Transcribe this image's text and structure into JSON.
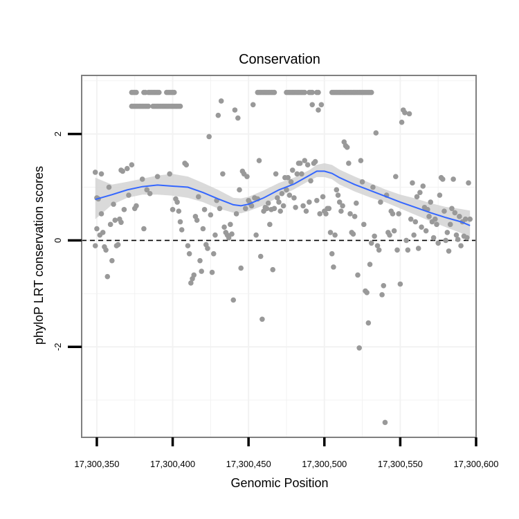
{
  "chart_data": {
    "type": "scatter",
    "title": "Conservation",
    "xlabel": "Genomic Position",
    "ylabel": "phyloP LRT conservation scores",
    "xlim": [
      17300340,
      17300600
    ],
    "ylim": [
      -3.7,
      3.1
    ],
    "x_ticks": [
      17300350,
      17300400,
      17300450,
      17300500,
      17300550,
      17300600
    ],
    "x_tick_labels": [
      "17,300,350",
      "17,300,400",
      "17,300,450",
      "17,300,500",
      "17,300,550",
      "17,300,600"
    ],
    "y_ticks": [
      -2,
      0,
      2
    ],
    "y_tick_labels": [
      "-2",
      "0",
      "2"
    ],
    "reference_line": {
      "y": 0,
      "style": "dashed"
    },
    "colors": {
      "points": "#999999",
      "smooth": "#3366ff",
      "band": "#d3d3d3",
      "frame": "#7f7f7f",
      "grid": "#f2f2f2"
    },
    "points": [
      [
        17300349,
        1.28
      ],
      [
        17300349,
        -0.1
      ],
      [
        17300350,
        0.8
      ],
      [
        17300350,
        0.22
      ],
      [
        17300351,
        0.78
      ],
      [
        17300352,
        0.1
      ],
      [
        17300353,
        1.25
      ],
      [
        17300353,
        0.5
      ],
      [
        17300354,
        0.15
      ],
      [
        17300355,
        -0.12
      ],
      [
        17300356,
        -0.18
      ],
      [
        17300357,
        -0.68
      ],
      [
        17300358,
        1.0
      ],
      [
        17300359,
        0.3
      ],
      [
        17300360,
        -0.38
      ],
      [
        17300361,
        0.68
      ],
      [
        17300362,
        0.38
      ],
      [
        17300363,
        -0.1
      ],
      [
        17300364,
        -0.08
      ],
      [
        17300365,
        0.4
      ],
      [
        17300366,
        1.32
      ],
      [
        17300366,
        0.34
      ],
      [
        17300367,
        1.3
      ],
      [
        17300368,
        0.58
      ],
      [
        17300370,
        1.35
      ],
      [
        17300371,
        0.85
      ],
      [
        17300373,
        1.42
      ],
      [
        17300375,
        0.6
      ],
      [
        17300376,
        0.65
      ],
      [
        17300380,
        1.15
      ],
      [
        17300381,
        0.22
      ],
      [
        17300383,
        0.95
      ],
      [
        17300385,
        0.88
      ],
      [
        17300390,
        1.2
      ],
      [
        17300398,
        1.25
      ],
      [
        17300400,
        0.58
      ],
      [
        17300402,
        0.78
      ],
      [
        17300403,
        0.72
      ],
      [
        17300404,
        0.55
      ],
      [
        17300405,
        0.35
      ],
      [
        17300406,
        0.2
      ],
      [
        17300408,
        1.45
      ],
      [
        17300409,
        1.42
      ],
      [
        17300410,
        -0.1
      ],
      [
        17300411,
        -0.25
      ],
      [
        17300412,
        -0.8
      ],
      [
        17300413,
        -0.72
      ],
      [
        17300414,
        -0.65
      ],
      [
        17300415,
        0.45
      ],
      [
        17300416,
        0.38
      ],
      [
        17300417,
        0.82
      ],
      [
        17300418,
        -0.38
      ],
      [
        17300419,
        -0.58
      ],
      [
        17300420,
        0.22
      ],
      [
        17300421,
        0.58
      ],
      [
        17300422,
        -0.08
      ],
      [
        17300423,
        -0.15
      ],
      [
        17300424,
        1.95
      ],
      [
        17300425,
        0.48
      ],
      [
        17300426,
        -0.6
      ],
      [
        17300427,
        -0.25
      ],
      [
        17300428,
        0.1
      ],
      [
        17300429,
        0.75
      ],
      [
        17300430,
        2.35
      ],
      [
        17300431,
        0.6
      ],
      [
        17300432,
        2.62
      ],
      [
        17300433,
        1.25
      ],
      [
        17300434,
        0.25
      ],
      [
        17300435,
        0.15
      ],
      [
        17300436,
        0.1
      ],
      [
        17300437,
        0.05
      ],
      [
        17300438,
        0.3
      ],
      [
        17300439,
        0.12
      ],
      [
        17300440,
        -1.12
      ],
      [
        17300441,
        2.45
      ],
      [
        17300442,
        0.5
      ],
      [
        17300443,
        2.3
      ],
      [
        17300444,
        0.95
      ],
      [
        17300445,
        -0.52
      ],
      [
        17300446,
        1.3
      ],
      [
        17300447,
        1.25
      ],
      [
        17300448,
        0.6
      ],
      [
        17300449,
        1.2
      ],
      [
        17300450,
        0.75
      ],
      [
        17300451,
        0.7
      ],
      [
        17300452,
        0.65
      ],
      [
        17300453,
        2.55
      ],
      [
        17300454,
        0.8
      ],
      [
        17300455,
        0.1
      ],
      [
        17300456,
        0.78
      ],
      [
        17300457,
        1.5
      ],
      [
        17300458,
        -0.3
      ],
      [
        17300459,
        -1.48
      ],
      [
        17300460,
        0.55
      ],
      [
        17300461,
        0.62
      ],
      [
        17300462,
        0.6
      ],
      [
        17300463,
        0.7
      ],
      [
        17300464,
        0.3
      ],
      [
        17300465,
        0.58
      ],
      [
        17300466,
        -0.55
      ],
      [
        17300467,
        0.6
      ],
      [
        17300468,
        1.25
      ],
      [
        17300469,
        0.8
      ],
      [
        17300470,
        0.72
      ],
      [
        17300471,
        0.55
      ],
      [
        17300472,
        0.88
      ],
      [
        17300473,
        0.65
      ],
      [
        17300474,
        1.18
      ],
      [
        17300475,
        0.95
      ],
      [
        17300476,
        1.18
      ],
      [
        17300477,
        0.85
      ],
      [
        17300478,
        1.1
      ],
      [
        17300479,
        1.32
      ],
      [
        17300480,
        0.8
      ],
      [
        17300481,
        0.62
      ],
      [
        17300482,
        1.25
      ],
      [
        17300483,
        1.45
      ],
      [
        17300484,
        1.45
      ],
      [
        17300485,
        1.25
      ],
      [
        17300486,
        0.65
      ],
      [
        17300487,
        1.5
      ],
      [
        17300488,
        0.55
      ],
      [
        17300489,
        1.42
      ],
      [
        17300490,
        0.72
      ],
      [
        17300491,
        1.12
      ],
      [
        17300492,
        2.55
      ],
      [
        17300493,
        1.45
      ],
      [
        17300494,
        1.48
      ],
      [
        17300495,
        0.75
      ],
      [
        17300496,
        2.45
      ],
      [
        17300497,
        0.5
      ],
      [
        17300498,
        2.55
      ],
      [
        17300499,
        0.82
      ],
      [
        17300500,
        0.55
      ],
      [
        17300501,
        0.5
      ],
      [
        17300502,
        0.6
      ],
      [
        17300503,
        0.6
      ],
      [
        17300504,
        0.15
      ],
      [
        17300505,
        -0.25
      ],
      [
        17300506,
        -0.5
      ],
      [
        17300507,
        0.1
      ],
      [
        17300508,
        0.95
      ],
      [
        17300509,
        0.85
      ],
      [
        17300510,
        0.72
      ],
      [
        17300511,
        0.55
      ],
      [
        17300512,
        0.65
      ],
      [
        17300513,
        1.85
      ],
      [
        17300514,
        1.78
      ],
      [
        17300515,
        1.75
      ],
      [
        17300516,
        1.45
      ],
      [
        17300517,
        0.5
      ],
      [
        17300518,
        0.15
      ],
      [
        17300519,
        0.12
      ],
      [
        17300520,
        0.45
      ],
      [
        17300521,
        0.7
      ],
      [
        17300522,
        -0.65
      ],
      [
        17300523,
        -2.02
      ],
      [
        17300524,
        1.5
      ],
      [
        17300525,
        1.1
      ],
      [
        17300526,
        0.3
      ],
      [
        17300527,
        -0.95
      ],
      [
        17300528,
        -0.98
      ],
      [
        17300529,
        -1.55
      ],
      [
        17300530,
        -0.45
      ],
      [
        17300531,
        -0.05
      ],
      [
        17300532,
        1.0
      ],
      [
        17300533,
        0.08
      ],
      [
        17300534,
        2.02
      ],
      [
        17300535,
        -0.1
      ],
      [
        17300536,
        -0.18
      ],
      [
        17300537,
        0.72
      ],
      [
        17300538,
        -1.02
      ],
      [
        17300539,
        -0.85
      ],
      [
        17300540,
        -3.42
      ],
      [
        17300541,
        0.85
      ],
      [
        17300542,
        0.15
      ],
      [
        17300543,
        0.1
      ],
      [
        17300544,
        0.55
      ],
      [
        17300545,
        0.5
      ],
      [
        17300546,
        0.18
      ],
      [
        17300547,
        1.2
      ],
      [
        17300548,
        -0.18
      ],
      [
        17300549,
        0.5
      ],
      [
        17300550,
        -0.82
      ],
      [
        17300551,
        2.22
      ],
      [
        17300552,
        2.45
      ],
      [
        17300553,
        2.4
      ],
      [
        17300554,
        0.0
      ],
      [
        17300555,
        -0.18
      ],
      [
        17300556,
        2.38
      ],
      [
        17300557,
        0.4
      ],
      [
        17300558,
        1.08
      ],
      [
        17300559,
        0.1
      ],
      [
        17300560,
        0.35
      ],
      [
        17300561,
        0.82
      ],
      [
        17300562,
        -0.15
      ],
      [
        17300563,
        0.9
      ],
      [
        17300564,
        0.25
      ],
      [
        17300565,
        1.02
      ],
      [
        17300566,
        0.62
      ],
      [
        17300567,
        0.18
      ],
      [
        17300568,
        0.58
      ],
      [
        17300569,
        0.45
      ],
      [
        17300570,
        0.72
      ],
      [
        17300571,
        0.35
      ],
      [
        17300572,
        0.05
      ],
      [
        17300573,
        0.4
      ],
      [
        17300574,
        0.3
      ],
      [
        17300575,
        -0.05
      ],
      [
        17300576,
        0.85
      ],
      [
        17300577,
        1.18
      ],
      [
        17300578,
        1.15
      ],
      [
        17300579,
        0.55
      ],
      [
        17300580,
        0.0
      ],
      [
        17300581,
        0.15
      ],
      [
        17300582,
        -0.2
      ],
      [
        17300583,
        0.3
      ],
      [
        17300584,
        0.6
      ],
      [
        17300585,
        1.15
      ],
      [
        17300586,
        0.52
      ],
      [
        17300587,
        0.1
      ],
      [
        17300588,
        0.02
      ],
      [
        17300589,
        0.45
      ],
      [
        17300590,
        -0.1
      ],
      [
        17300591,
        0.35
      ],
      [
        17300592,
        0.08
      ],
      [
        17300593,
        0.4
      ],
      [
        17300594,
        0.05
      ],
      [
        17300595,
        1.08
      ],
      [
        17300596,
        0.4
      ]
    ],
    "capped_rows": [
      {
        "y": 2.78,
        "x": [
          17300373,
          17300374,
          17300375,
          17300376,
          17300381,
          17300382,
          17300384,
          17300385,
          17300386,
          17300387,
          17300388,
          17300389,
          17300390,
          17300391,
          17300396,
          17300397,
          17300398,
          17300399,
          17300400,
          17300401,
          17300456,
          17300457,
          17300458,
          17300459,
          17300460,
          17300461,
          17300462,
          17300463,
          17300464,
          17300465,
          17300466,
          17300467,
          17300475,
          17300476,
          17300477,
          17300478,
          17300479,
          17300480,
          17300481,
          17300482,
          17300483,
          17300484,
          17300485,
          17300486,
          17300487,
          17300490,
          17300491,
          17300492,
          17300495,
          17300496,
          17300505,
          17300506,
          17300507,
          17300508,
          17300509,
          17300510,
          17300511,
          17300512,
          17300513,
          17300514,
          17300515,
          17300516,
          17300517,
          17300518,
          17300519,
          17300520,
          17300521,
          17300522,
          17300523,
          17300524,
          17300525,
          17300526,
          17300527,
          17300528,
          17300529,
          17300530,
          17300531
        ]
      },
      {
        "y": 2.52,
        "x": [
          17300373,
          17300374,
          17300375,
          17300376,
          17300377,
          17300378,
          17300379,
          17300380,
          17300381,
          17300382,
          17300383,
          17300384,
          17300387,
          17300388,
          17300389,
          17300390,
          17300391,
          17300392,
          17300393,
          17300394,
          17300395,
          17300396,
          17300397,
          17300398,
          17300399,
          17300400,
          17300401,
          17300402,
          17300403,
          17300404,
          17300405
        ]
      }
    ],
    "smooth": {
      "x": [
        17300349,
        17300360,
        17300370,
        17300380,
        17300390,
        17300400,
        17300410,
        17300420,
        17300430,
        17300440,
        17300445,
        17300450,
        17300460,
        17300470,
        17300480,
        17300490,
        17300495,
        17300500,
        17300505,
        17300510,
        17300520,
        17300530,
        17300540,
        17300550,
        17300560,
        17300570,
        17300580,
        17300590,
        17300596
      ],
      "y": [
        0.77,
        0.86,
        0.95,
        1.01,
        1.04,
        1.02,
        1.0,
        0.9,
        0.78,
        0.67,
        0.65,
        0.68,
        0.8,
        0.95,
        1.06,
        1.22,
        1.3,
        1.3,
        1.26,
        1.18,
        1.05,
        0.94,
        0.83,
        0.72,
        0.62,
        0.52,
        0.43,
        0.35,
        0.28
      ],
      "lower": [
        0.4,
        0.67,
        0.8,
        0.86,
        0.86,
        0.84,
        0.8,
        0.72,
        0.6,
        0.52,
        0.51,
        0.55,
        0.66,
        0.82,
        0.96,
        1.12,
        1.19,
        1.19,
        1.15,
        1.05,
        0.92,
        0.81,
        0.72,
        0.6,
        0.48,
        0.36,
        0.25,
        0.14,
        0.05
      ],
      "upper": [
        1.18,
        1.05,
        1.1,
        1.16,
        1.22,
        1.25,
        1.2,
        1.08,
        0.95,
        0.8,
        0.79,
        0.82,
        0.94,
        1.08,
        1.18,
        1.32,
        1.42,
        1.45,
        1.42,
        1.33,
        1.2,
        1.08,
        0.96,
        0.86,
        0.79,
        0.7,
        0.63,
        0.59,
        0.56
      ]
    }
  }
}
